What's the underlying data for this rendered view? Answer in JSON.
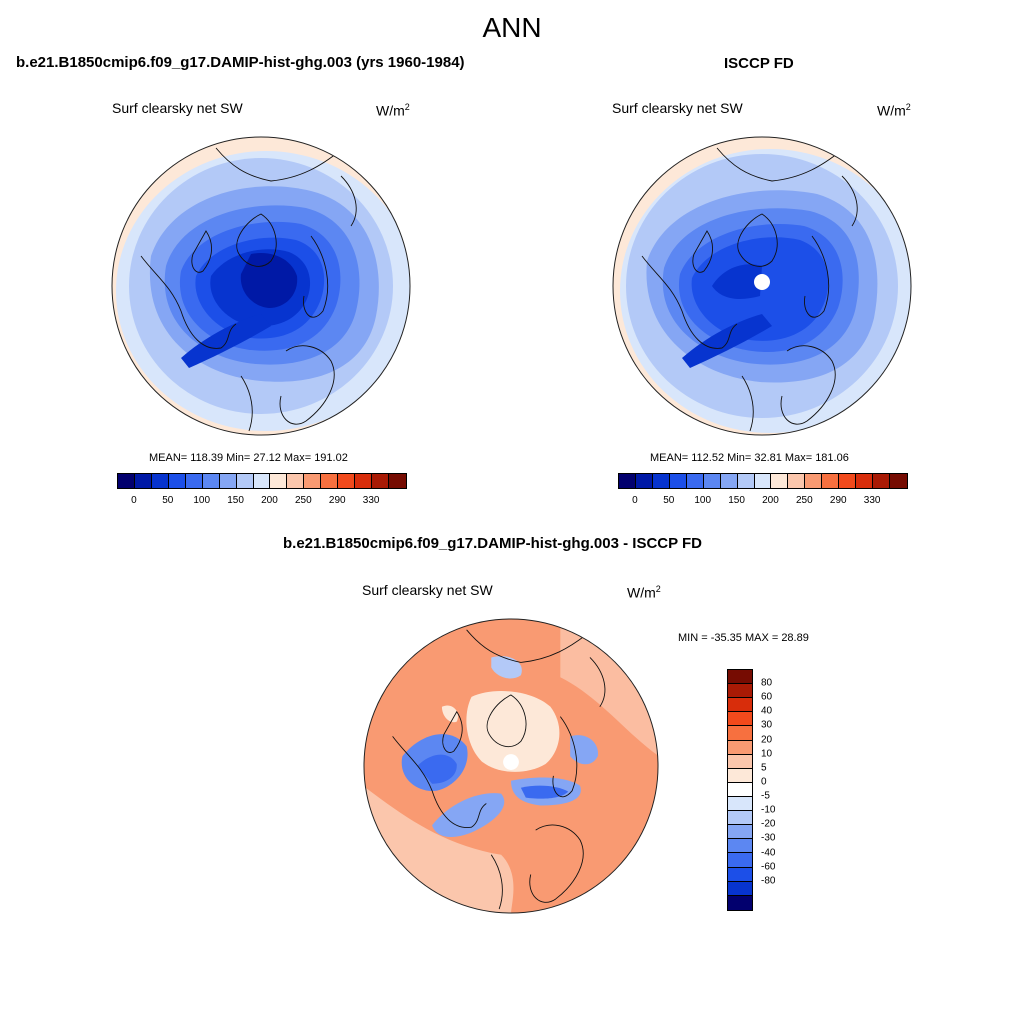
{
  "page": {
    "title": "ANN"
  },
  "panels": {
    "model": {
      "title": "b.e21.B1850cmip6.f09_g17.DAMIP-hist-ghg.003 (yrs 1960-1984)",
      "variable": "Surf clearsky net SW",
      "units_base": "W/m",
      "units_sup": "2",
      "stats": "MEAN= 118.39  Min=  27.12  Max= 191.02"
    },
    "obs": {
      "title": "ISCCP FD",
      "variable": "Surf clearsky net SW",
      "units_base": "W/m",
      "units_sup": "2",
      "stats": "MEAN= 112.52  Min=  32.81  Max= 181.06"
    },
    "diff": {
      "title": "b.e21.B1850cmip6.f09_g17.DAMIP-hist-ghg.003 - ISCCP FD",
      "variable": "Surf clearsky net SW",
      "units_base": "W/m",
      "units_sup": "2",
      "stats": "MIN = -35.35 MAX =  28.89"
    }
  },
  "colorbars": {
    "absolute": {
      "colors": [
        "#02006e",
        "#0019a6",
        "#0734cf",
        "#1c4fe8",
        "#3a6af0",
        "#5c87f2",
        "#85a6f4",
        "#b3c9f7",
        "#d8e6fb",
        "#fde8d8",
        "#fbc6ac",
        "#f99a72",
        "#f7703f",
        "#f24a1c",
        "#d82d0b",
        "#a91a05",
        "#760c02"
      ],
      "ticks": [
        "0",
        "50",
        "100",
        "150",
        "200",
        "250",
        "290",
        "330"
      ]
    },
    "difference": {
      "colors": [
        "#760c02",
        "#a91a05",
        "#d82d0b",
        "#f24a1c",
        "#f7703f",
        "#f99a72",
        "#fbc6ac",
        "#fde8d8",
        "#ffffff",
        "#d8e6fb",
        "#b3c9f7",
        "#85a6f4",
        "#5c87f2",
        "#3a6af0",
        "#1c4fe8",
        "#0734cf",
        "#02006e"
      ],
      "ticks": [
        "80",
        "60",
        "40",
        "30",
        "20",
        "10",
        "5",
        "0",
        "-5",
        "-10",
        "-20",
        "-30",
        "-40",
        "-60",
        "-80"
      ]
    }
  }
}
